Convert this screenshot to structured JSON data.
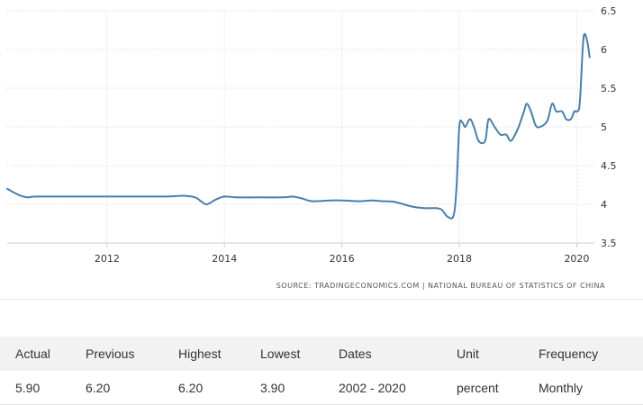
{
  "chart_data": {
    "type": "line",
    "source_text": "SOURCE: TRADINGECONOMICS.COM  |  NATIONAL BUREAU OF STATISTICS OF CHINA",
    "x_ticks": [
      2012,
      2014,
      2016,
      2018,
      2020
    ],
    "y_ticks": [
      3.5,
      4,
      4.5,
      5,
      5.5,
      6,
      6.5
    ],
    "xlim": [
      2010.3,
      2020.3
    ],
    "ylim": [
      3.5,
      6.5
    ],
    "grid": true,
    "series": [
      {
        "color": "#4a7faa",
        "points": [
          [
            2010.3,
            4.2
          ],
          [
            2010.5,
            4.12
          ],
          [
            2010.65,
            4.09
          ],
          [
            2010.8,
            4.1
          ],
          [
            2011.5,
            4.1
          ],
          [
            2012.5,
            4.1
          ],
          [
            2013.0,
            4.1
          ],
          [
            2013.3,
            4.11
          ],
          [
            2013.5,
            4.09
          ],
          [
            2013.6,
            4.04
          ],
          [
            2013.7,
            4.0
          ],
          [
            2013.85,
            4.06
          ],
          [
            2014.0,
            4.1
          ],
          [
            2014.2,
            4.09
          ],
          [
            2014.6,
            4.09
          ],
          [
            2015.0,
            4.09
          ],
          [
            2015.15,
            4.1
          ],
          [
            2015.3,
            4.08
          ],
          [
            2015.5,
            4.04
          ],
          [
            2015.8,
            4.05
          ],
          [
            2016.0,
            4.05
          ],
          [
            2016.3,
            4.04
          ],
          [
            2016.5,
            4.05
          ],
          [
            2016.7,
            4.04
          ],
          [
            2016.9,
            4.03
          ],
          [
            2017.2,
            3.97
          ],
          [
            2017.4,
            3.95
          ],
          [
            2017.6,
            3.95
          ],
          [
            2017.7,
            3.93
          ],
          [
            2017.8,
            3.84
          ],
          [
            2017.9,
            3.85
          ],
          [
            2017.95,
            4.2
          ],
          [
            2018.0,
            5.0
          ],
          [
            2018.05,
            5.06
          ],
          [
            2018.1,
            5.0
          ],
          [
            2018.18,
            5.1
          ],
          [
            2018.25,
            5.0
          ],
          [
            2018.32,
            4.83
          ],
          [
            2018.4,
            4.79
          ],
          [
            2018.45,
            4.85
          ],
          [
            2018.5,
            5.1
          ],
          [
            2018.6,
            5.0
          ],
          [
            2018.7,
            4.9
          ],
          [
            2018.8,
            4.9
          ],
          [
            2018.88,
            4.82
          ],
          [
            2019.0,
            4.98
          ],
          [
            2019.1,
            5.2
          ],
          [
            2019.15,
            5.3
          ],
          [
            2019.22,
            5.2
          ],
          [
            2019.3,
            5.02
          ],
          [
            2019.38,
            5.0
          ],
          [
            2019.5,
            5.08
          ],
          [
            2019.58,
            5.3
          ],
          [
            2019.65,
            5.2
          ],
          [
            2019.75,
            5.2
          ],
          [
            2019.82,
            5.1
          ],
          [
            2019.9,
            5.1
          ],
          [
            2019.96,
            5.2
          ],
          [
            2020.0,
            5.2
          ],
          [
            2020.05,
            5.3
          ],
          [
            2020.1,
            6.0
          ],
          [
            2020.13,
            6.2
          ],
          [
            2020.18,
            6.1
          ],
          [
            2020.22,
            5.9
          ]
        ]
      }
    ]
  },
  "stats_table": {
    "headers": [
      "Actual",
      "Previous",
      "Highest",
      "Lowest",
      "Dates",
      "Unit",
      "Frequency"
    ],
    "values": [
      "5.90",
      "6.20",
      "6.20",
      "3.90",
      "2002 - 2020",
      "percent",
      "Monthly"
    ]
  }
}
